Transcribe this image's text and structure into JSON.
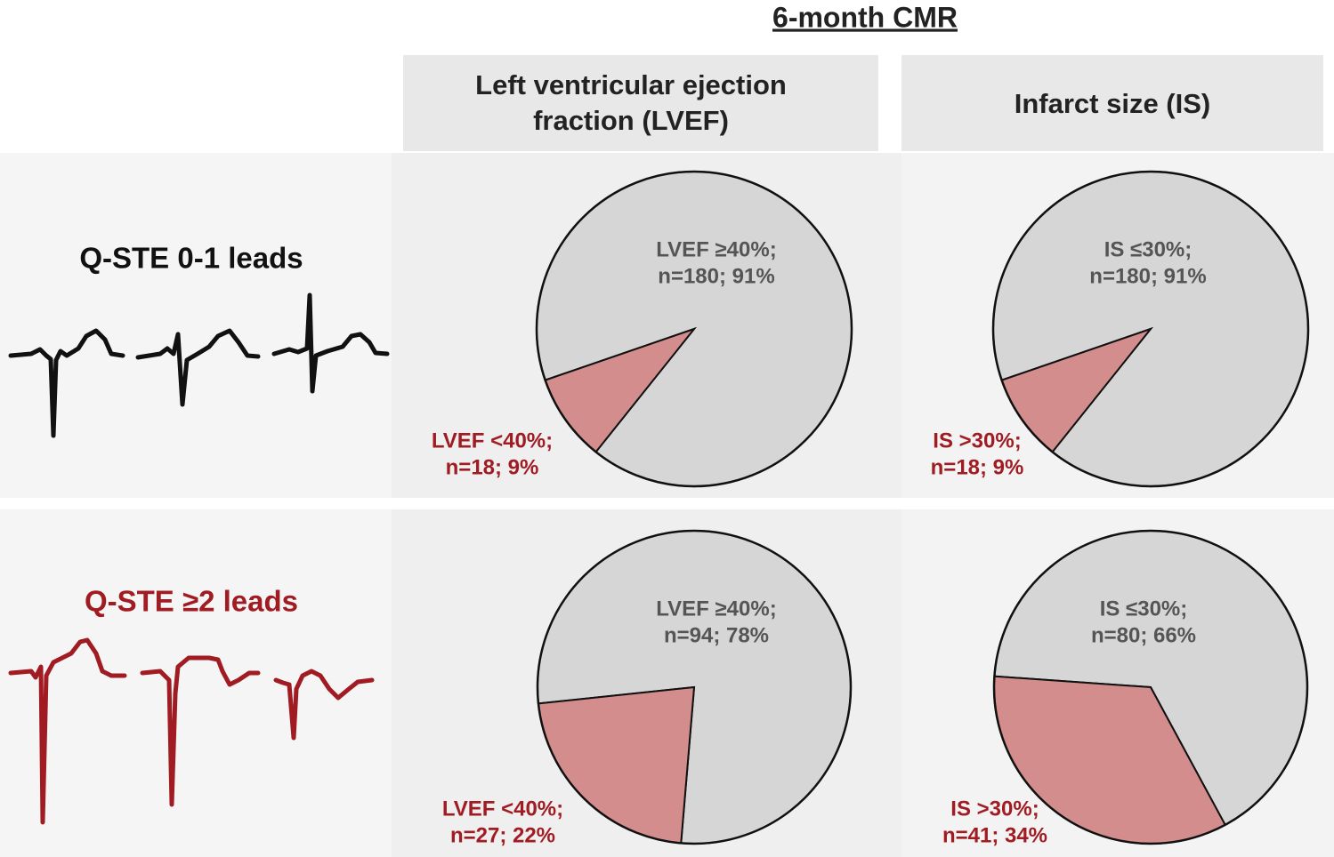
{
  "title": "6-month CMR",
  "columns": [
    [
      "Left ventricular ejection",
      "fraction (LVEF)"
    ],
    [
      "Infarct size (IS)"
    ]
  ],
  "rows": [
    "Q-STE 0-1 leads",
    "Q-STE ≥2 leads"
  ],
  "chart_data": [
    {
      "type": "pie",
      "categories": [
        "LVEF ≥40%;",
        "LVEF <40%;"
      ],
      "values": [
        91,
        9
      ],
      "value_labels": [
        "n=180; 91%",
        "n=18; 9%"
      ],
      "colors": [
        "#d6d6d6",
        "#d48d8d"
      ]
    },
    {
      "type": "pie",
      "categories": [
        "IS ≤30%;",
        "IS >30%;"
      ],
      "values": [
        91,
        9
      ],
      "value_labels": [
        "n=180; 91%",
        "n=18; 9%"
      ],
      "colors": [
        "#d6d6d6",
        "#d48d8d"
      ]
    },
    {
      "type": "pie",
      "categories": [
        "LVEF ≥40%;",
        "LVEF <40%;"
      ],
      "values": [
        78,
        22
      ],
      "value_labels": [
        "n=94; 78%",
        "n=27; 22%"
      ],
      "colors": [
        "#d6d6d6",
        "#d48d8d"
      ]
    },
    {
      "type": "pie",
      "categories": [
        "IS ≤30%;",
        "IS >30%;"
      ],
      "values": [
        66,
        34
      ],
      "value_labels": [
        "n=80; 66%",
        "n=41; 34%"
      ],
      "colors": [
        "#d6d6d6",
        "#d48d8d"
      ]
    }
  ]
}
